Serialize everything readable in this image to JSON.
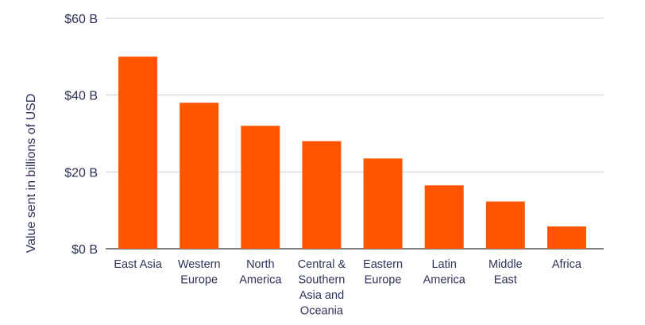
{
  "chart_data": {
    "type": "bar",
    "title": "",
    "xlabel": "",
    "ylabel": "Value sent in billions of USD",
    "ylim": [
      0,
      60
    ],
    "y_ticks": [
      0,
      20,
      40,
      60
    ],
    "y_tick_labels": [
      "$0 B",
      "$20 B",
      "$40 B",
      "$60 B"
    ],
    "grid": true,
    "legend": "none",
    "categories": [
      [
        "East Asia"
      ],
      [
        "Western",
        "Europe"
      ],
      [
        "North",
        "America"
      ],
      [
        "Central &",
        "Southern",
        "Asia and",
        "Oceania"
      ],
      [
        "Eastern",
        "Europe"
      ],
      [
        "Latin",
        "America"
      ],
      [
        "Middle",
        "East"
      ],
      [
        "Africa"
      ]
    ],
    "values": [
      50,
      38,
      32,
      28,
      23.5,
      16.5,
      12.3,
      5.8
    ]
  },
  "colors": {
    "bar": "#ff5500",
    "grid": "#cccccc",
    "axis_line": "#333333",
    "text": "#2e3258"
  }
}
